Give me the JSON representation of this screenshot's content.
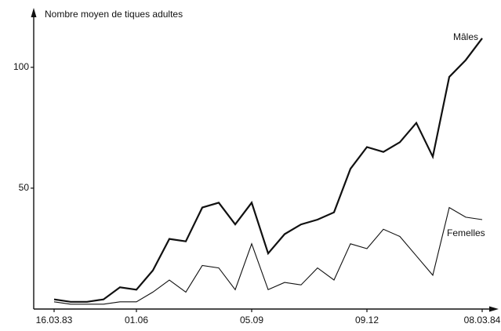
{
  "chart_data": {
    "type": "line",
    "y_label": "Nombre moyen de tiques adultes",
    "categories": [
      "16.03.83",
      null,
      null,
      null,
      null,
      "01.06",
      null,
      null,
      null,
      null,
      null,
      null,
      "05.09",
      null,
      null,
      null,
      null,
      null,
      null,
      "09.12",
      null,
      null,
      null,
      null,
      null,
      null,
      "08.03.84"
    ],
    "series": [
      {
        "name": "Mâles",
        "color": "#111111",
        "width": 2.2,
        "values": [
          4,
          3,
          3,
          4,
          9,
          8,
          16,
          29,
          28,
          42,
          44,
          35,
          44,
          23,
          31,
          35,
          37,
          40,
          58,
          67,
          65,
          69,
          77,
          63,
          96,
          103,
          112
        ]
      },
      {
        "name": "Femelles",
        "color": "#111111",
        "width": 1.1,
        "values": [
          3,
          2,
          2,
          2,
          3,
          3,
          7,
          12,
          7,
          18,
          17,
          8,
          27,
          8,
          11,
          10,
          17,
          12,
          27,
          25,
          33,
          30,
          22,
          14,
          42,
          38,
          37
        ]
      }
    ],
    "ylim": [
      0,
      122
    ],
    "yticks": [
      50,
      100
    ],
    "grid": false
  }
}
